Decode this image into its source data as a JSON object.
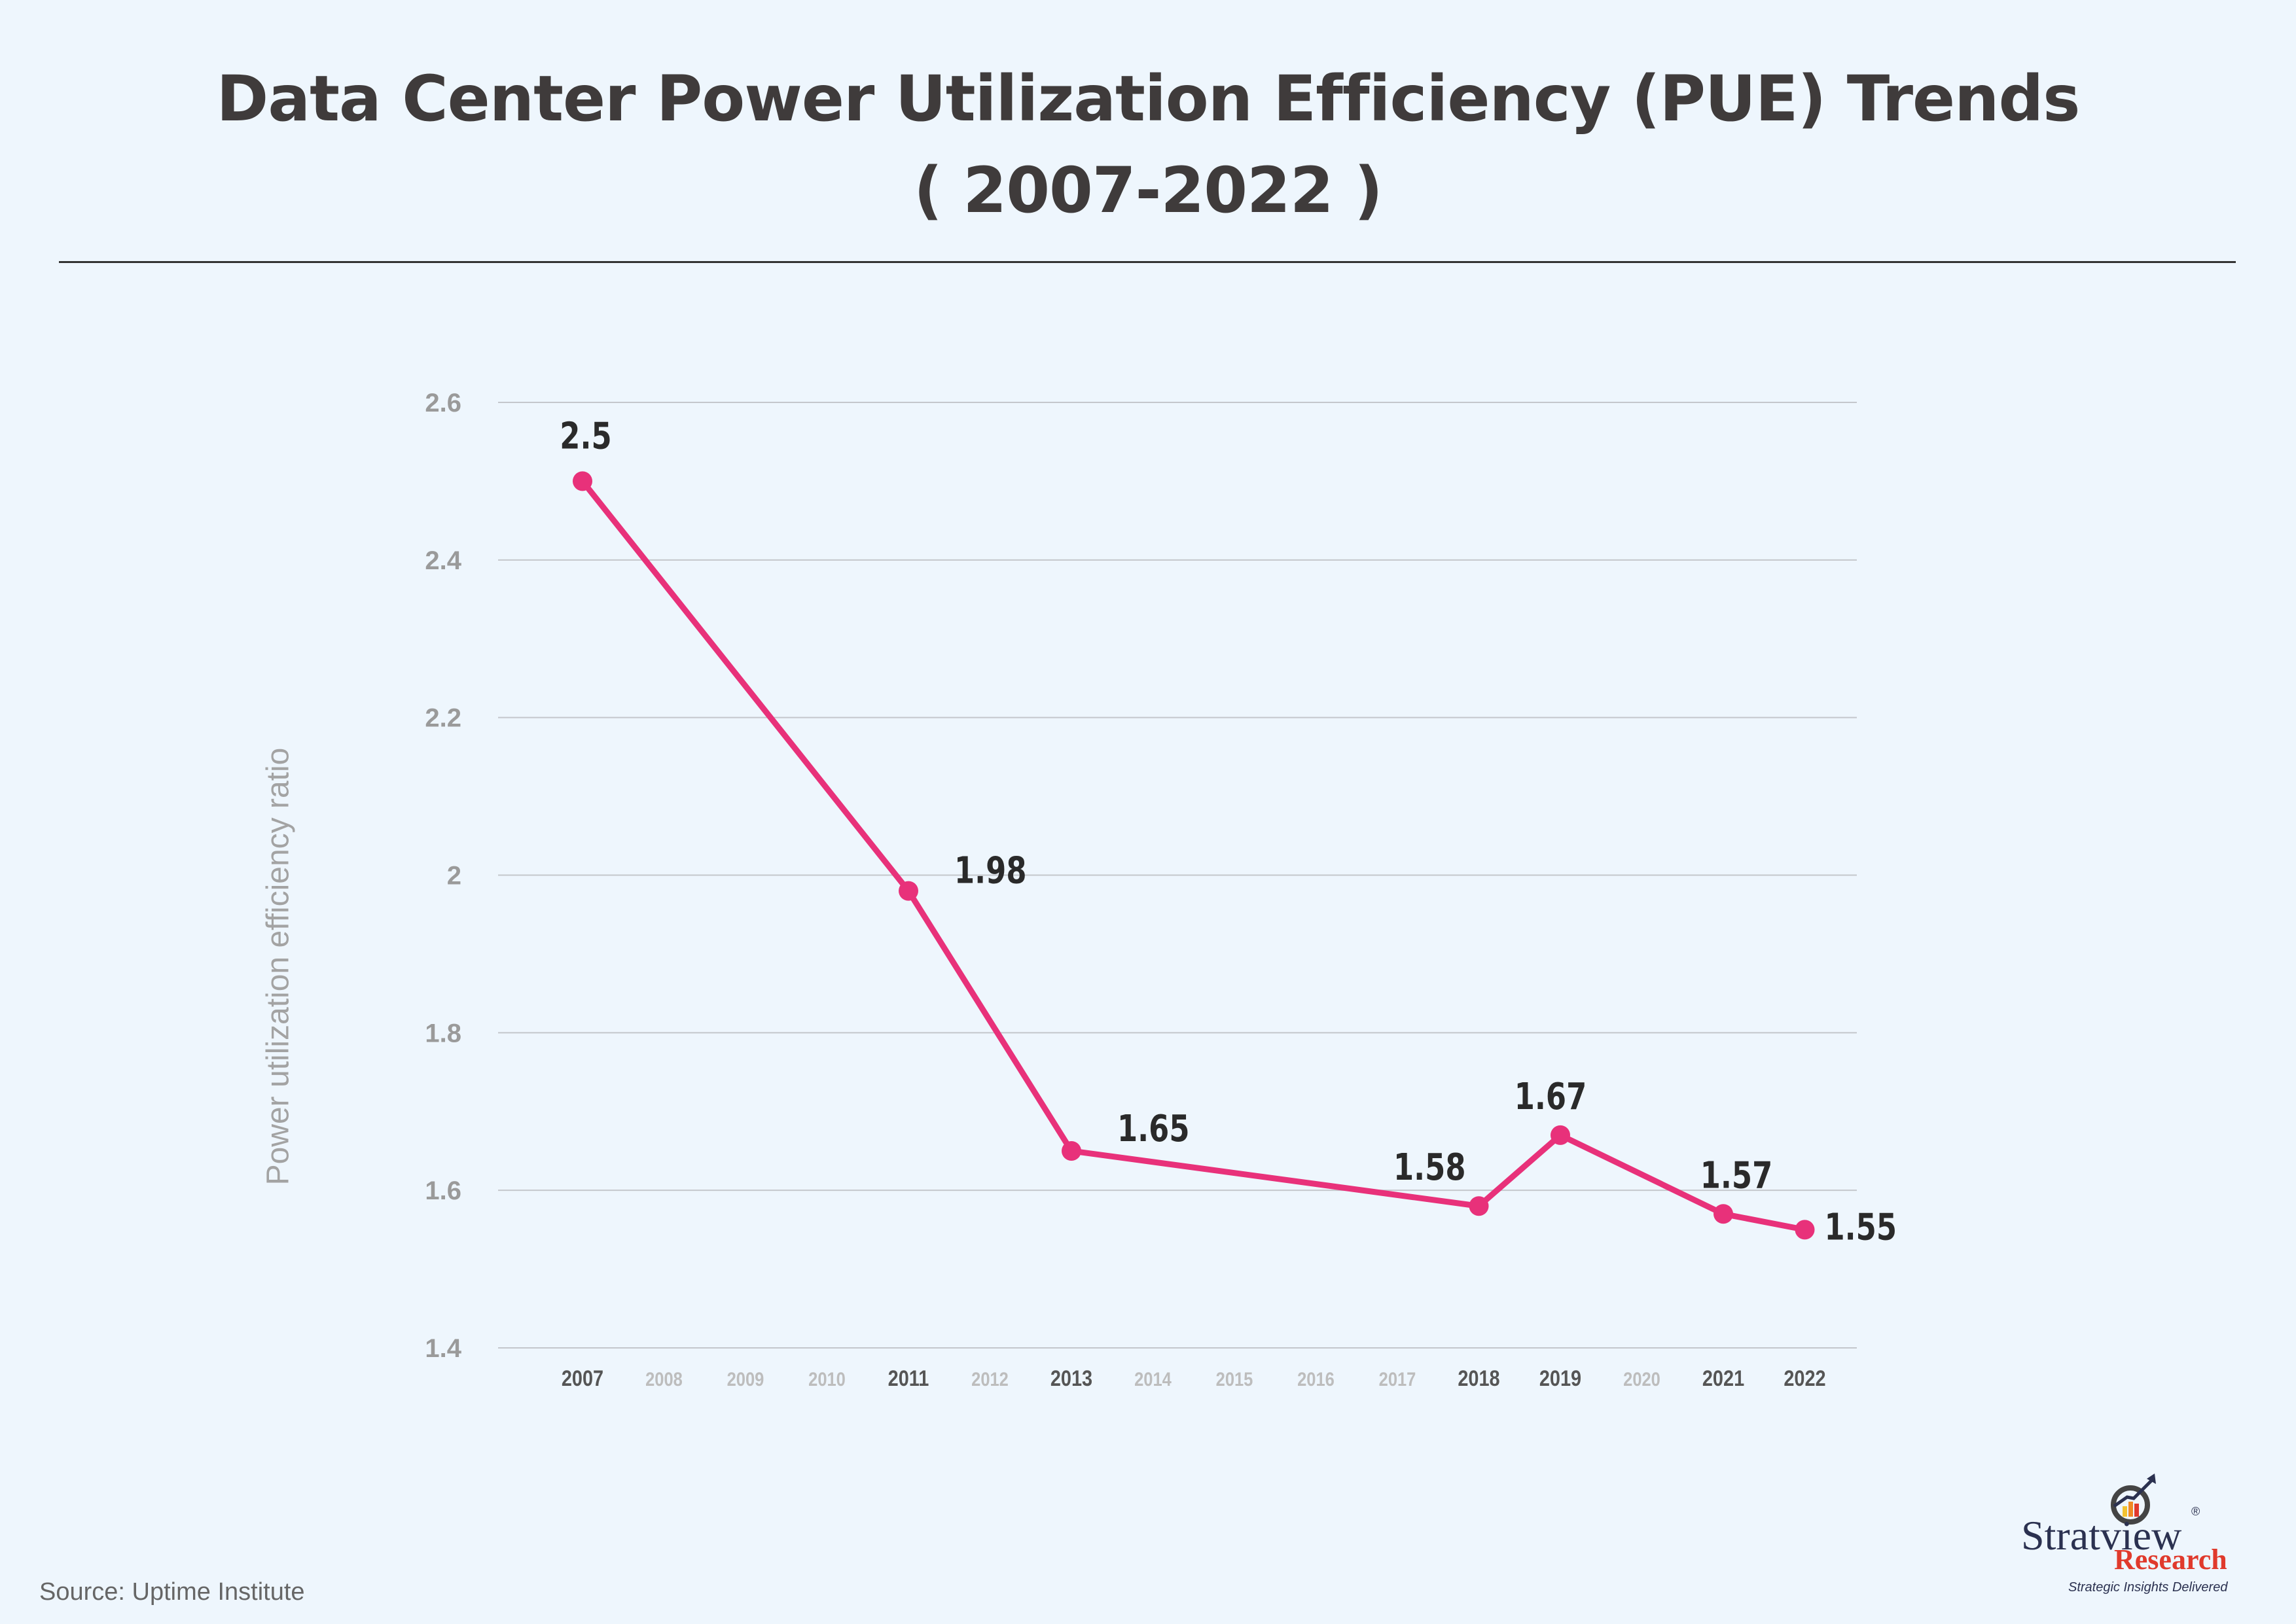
{
  "chart_data": {
    "type": "line",
    "title": "Data Center Power Utilization Efficiency (PUE) Trends",
    "subtitle": "( 2007-2022 )",
    "ylabel": "Power utilization efficiency ratio",
    "xlabel": "",
    "categories": [
      "2007",
      "2008",
      "2009",
      "2010",
      "2011",
      "2012",
      "2013",
      "2014",
      "2015",
      "2016",
      "2017",
      "2018",
      "2019",
      "2020",
      "2021",
      "2022"
    ],
    "highlighted_categories": [
      "2007",
      "2011",
      "2013",
      "2018",
      "2019",
      "2021",
      "2022"
    ],
    "x": [
      2007,
      2011,
      2013,
      2018,
      2019,
      2021,
      2022
    ],
    "values": [
      2.5,
      1.98,
      1.65,
      1.58,
      1.67,
      1.57,
      1.55
    ],
    "data_labels": [
      "2.5",
      "1.98",
      "1.65",
      "1.58",
      "1.67",
      "1.57",
      "1.55"
    ],
    "ylim": [
      1.4,
      2.6
    ],
    "yticks": [
      "1.4",
      "1.6",
      "1.8",
      "2",
      "2.2",
      "2.4",
      "2.6"
    ],
    "grid": true,
    "line_color": "#e8317a"
  },
  "source": "Source: Uptime Institute",
  "logo": {
    "name": "Stratview",
    "sub": "Research",
    "tagline": "Strategic Insights Delivered",
    "reg": "®"
  }
}
